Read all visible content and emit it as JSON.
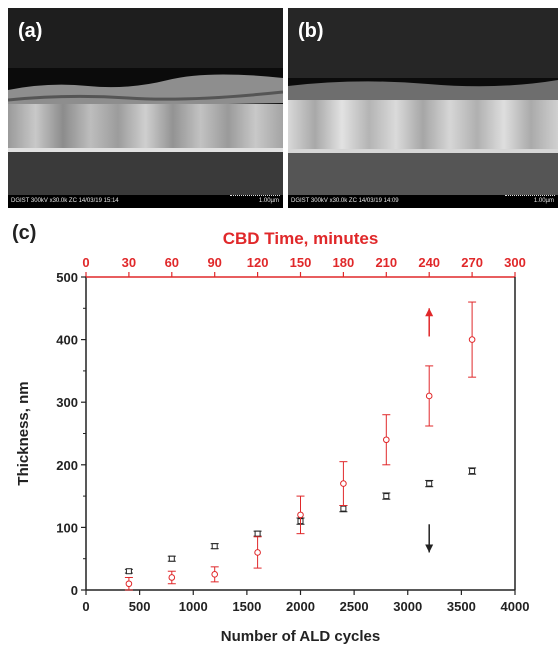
{
  "panels": [
    {
      "label": "(a)",
      "info": "DGIST  300kV  x30.0k  ZC  14/03/19  15:14",
      "scale": "1.00µm"
    },
    {
      "label": "(b)",
      "info": "DGIST  300kV  x30.0k  ZC  14/03/19  14:09",
      "scale": "1.00µm"
    }
  ],
  "chart_label": "(c)",
  "colors": {
    "red": "#e0282a",
    "black": "#222222",
    "axis_red": "#e0282a"
  },
  "chart_data": {
    "type": "scatter",
    "ylabel": "Thickness, nm",
    "xlabel_bottom": "Number of ALD cycles",
    "xlabel_top": "CBD Time, minutes",
    "xlim_bottom": [
      0,
      4000
    ],
    "xlim_top": [
      0,
      300
    ],
    "ylim": [
      0,
      500
    ],
    "xticks_bottom": [
      0,
      500,
      1000,
      1500,
      2000,
      2500,
      3000,
      3500,
      4000
    ],
    "xticks_top": [
      0,
      30,
      60,
      90,
      120,
      150,
      180,
      210,
      240,
      270,
      300
    ],
    "yticks": [
      0,
      100,
      200,
      300,
      400,
      500
    ],
    "grid": false,
    "series": [
      {
        "axis": "bottom",
        "color": "black",
        "marker": "square",
        "points": [
          {
            "x": 400,
            "y": 30,
            "err": 3
          },
          {
            "x": 800,
            "y": 50,
            "err": 4
          },
          {
            "x": 1200,
            "y": 70,
            "err": 4
          },
          {
            "x": 1600,
            "y": 90,
            "err": 4
          },
          {
            "x": 2000,
            "y": 110,
            "err": 5
          },
          {
            "x": 2400,
            "y": 130,
            "err": 5
          },
          {
            "x": 2800,
            "y": 150,
            "err": 5
          },
          {
            "x": 3200,
            "y": 170,
            "err": 5
          },
          {
            "x": 3600,
            "y": 190,
            "err": 5
          }
        ]
      },
      {
        "axis": "top",
        "color": "red",
        "marker": "circle",
        "points": [
          {
            "x": 30,
            "y": 10,
            "err": 10
          },
          {
            "x": 60,
            "y": 20,
            "err": 10
          },
          {
            "x": 90,
            "y": 25,
            "err": 12
          },
          {
            "x": 120,
            "y": 60,
            "err": 25
          },
          {
            "x": 150,
            "y": 120,
            "err": 30
          },
          {
            "x": 180,
            "y": 170,
            "err": 35
          },
          {
            "x": 210,
            "y": 240,
            "err": 40
          },
          {
            "x": 240,
            "y": 310,
            "err": 48
          },
          {
            "x": 270,
            "y": 400,
            "err": 60
          }
        ]
      }
    ],
    "annotations": [
      {
        "type": "arrow",
        "direction": "up",
        "color": "red",
        "x_top": 240,
        "y_from": 405,
        "y_to": 450
      },
      {
        "type": "arrow",
        "direction": "down",
        "color": "black",
        "x_bottom": 3200,
        "y_from": 105,
        "y_to": 60
      }
    ]
  }
}
